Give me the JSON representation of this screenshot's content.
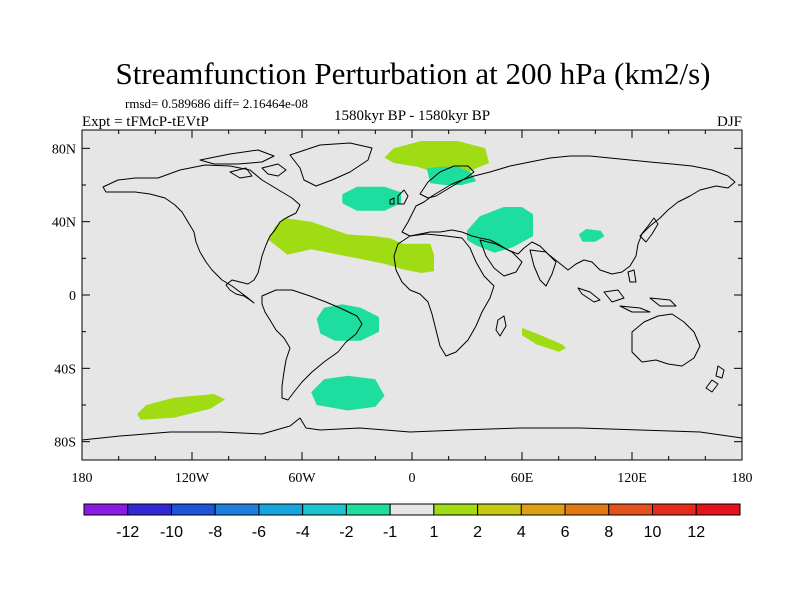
{
  "chart_data": {
    "type": "heatmap",
    "title": "Streamfunction Perturbation at 200 hPa (km2/s)",
    "stats_text": "rmsd= 0.589686 diff= 2.16464e-08",
    "left_label": "Expt = tFMcP-tEVtP",
    "center_label": "1580kyr BP - 1580kyr BP",
    "right_label": "DJF",
    "x_range": [
      -180,
      180
    ],
    "y_range": [
      -90,
      90
    ],
    "x_ticks": [
      {
        "value": -180,
        "label": "180"
      },
      {
        "value": -120,
        "label": "120W"
      },
      {
        "value": -60,
        "label": "60W"
      },
      {
        "value": 0,
        "label": "0"
      },
      {
        "value": 60,
        "label": "60E"
      },
      {
        "value": 120,
        "label": "120E"
      },
      {
        "value": 180,
        "label": "180"
      }
    ],
    "y_ticks": [
      {
        "value": 80,
        "label": "80N"
      },
      {
        "value": 40,
        "label": "40N"
      },
      {
        "value": 0,
        "label": "0"
      },
      {
        "value": -40,
        "label": "40S"
      },
      {
        "value": -80,
        "label": "80S"
      }
    ],
    "background_level": "-1 to 1",
    "background_color": "#e6e6e6",
    "anomaly_regions": [
      {
        "name": "north-atlantic-arctic",
        "level": "1 to 2",
        "polygon": [
          [
            -15,
            75
          ],
          [
            -10,
            80
          ],
          [
            5,
            84
          ],
          [
            25,
            84
          ],
          [
            40,
            80
          ],
          [
            42,
            72
          ],
          [
            30,
            67
          ],
          [
            15,
            66
          ],
          [
            3,
            70
          ],
          [
            -10,
            72
          ]
        ]
      },
      {
        "name": "scandinavia-green",
        "level": "-2 to -1",
        "polygon": [
          [
            8,
            69
          ],
          [
            15,
            70
          ],
          [
            25,
            70
          ],
          [
            32,
            67
          ],
          [
            35,
            62
          ],
          [
            27,
            60
          ],
          [
            18,
            60
          ],
          [
            10,
            61
          ]
        ]
      },
      {
        "name": "north-atlantic",
        "level": "-2 to -1",
        "polygon": [
          [
            -38,
            55
          ],
          [
            -30,
            59
          ],
          [
            -15,
            59
          ],
          [
            -6,
            56
          ],
          [
            -6,
            50
          ],
          [
            -15,
            46
          ],
          [
            -30,
            46
          ],
          [
            -38,
            50
          ]
        ]
      },
      {
        "name": "atlantic-band",
        "level": "1 to 2",
        "polygon": [
          [
            -75,
            37
          ],
          [
            -70,
            42
          ],
          [
            -55,
            40
          ],
          [
            -35,
            33
          ],
          [
            -20,
            32
          ],
          [
            -12,
            31
          ],
          [
            -5,
            28
          ],
          [
            10,
            28
          ],
          [
            12,
            22
          ],
          [
            12,
            13
          ],
          [
            5,
            12
          ],
          [
            -5,
            14
          ],
          [
            -15,
            17
          ],
          [
            -30,
            20
          ],
          [
            -55,
            25
          ],
          [
            -68,
            22
          ],
          [
            -78,
            30
          ]
        ]
      },
      {
        "name": "caspian-region",
        "level": "-2 to -1",
        "polygon": [
          [
            30,
            35
          ],
          [
            37,
            43
          ],
          [
            50,
            48
          ],
          [
            60,
            48
          ],
          [
            66,
            44
          ],
          [
            66,
            32
          ],
          [
            55,
            26
          ],
          [
            45,
            23
          ],
          [
            35,
            27
          ],
          [
            30,
            30
          ]
        ]
      },
      {
        "name": "east-asia",
        "level": "-2 to -1",
        "polygon": [
          [
            91,
            33
          ],
          [
            95,
            36
          ],
          [
            103,
            35
          ],
          [
            105,
            32
          ],
          [
            100,
            29
          ],
          [
            93,
            29
          ]
        ]
      },
      {
        "name": "south-atlantic-trop",
        "level": "-2 to -1",
        "polygon": [
          [
            -52,
            -13
          ],
          [
            -48,
            -7
          ],
          [
            -38,
            -5
          ],
          [
            -28,
            -7
          ],
          [
            -18,
            -12
          ],
          [
            -18,
            -20
          ],
          [
            -28,
            -25
          ],
          [
            -42,
            -25
          ],
          [
            -50,
            -21
          ]
        ]
      },
      {
        "name": "indian-ocean",
        "level": "1 to 2",
        "polygon": [
          [
            60,
            -18
          ],
          [
            68,
            -21
          ],
          [
            82,
            -27
          ],
          [
            84,
            -29
          ],
          [
            80,
            -31
          ],
          [
            68,
            -27
          ],
          [
            60,
            -22
          ]
        ]
      },
      {
        "name": "southern-atlantic",
        "level": "-2 to -1",
        "polygon": [
          [
            -55,
            -53
          ],
          [
            -48,
            -46
          ],
          [
            -35,
            -44
          ],
          [
            -20,
            -46
          ],
          [
            -15,
            -55
          ],
          [
            -20,
            -61
          ],
          [
            -35,
            -63
          ],
          [
            -52,
            -60
          ]
        ]
      },
      {
        "name": "south-pacific",
        "level": "1 to 2",
        "polygon": [
          [
            -150,
            -65
          ],
          [
            -145,
            -60
          ],
          [
            -130,
            -56
          ],
          [
            -108,
            -54
          ],
          [
            -102,
            -57
          ],
          [
            -110,
            -62
          ],
          [
            -130,
            -67
          ],
          [
            -148,
            -68
          ]
        ]
      }
    ],
    "colorbar": {
      "labels": [
        "-12",
        "-10",
        "-8",
        "-6",
        "-4",
        "-2",
        "-1",
        "1",
        "2",
        "4",
        "6",
        "8",
        "10",
        "12"
      ],
      "colors": [
        "#8c1ae6",
        "#3228d6",
        "#1d55d8",
        "#1d80e0",
        "#15a6e0",
        "#1ac5cf",
        "#1ede9f",
        "#e6e6e6",
        "#a0dc14",
        "#c8c814",
        "#dca014",
        "#e27814",
        "#e6501a",
        "#e62b1d",
        "#e6141a"
      ]
    }
  }
}
